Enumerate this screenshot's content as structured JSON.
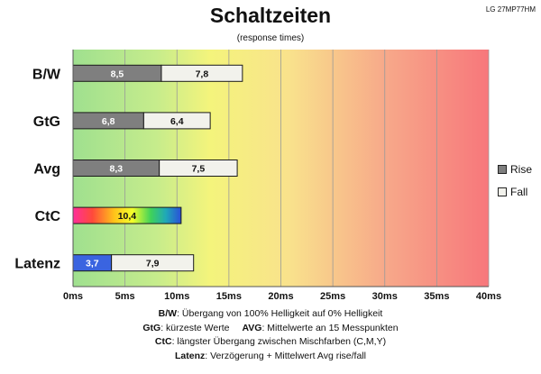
{
  "corner_label": "LG 27MP77HM",
  "chart_data": {
    "type": "bar",
    "orientation": "horizontal",
    "stacked": true,
    "title": "Schaltzeiten",
    "subtitle": "(response times)",
    "categories": [
      "B/W",
      "GtG",
      "Avg",
      "CtC",
      "Latenz"
    ],
    "series": [
      {
        "name": "Rise",
        "values": [
          8.5,
          6.8,
          8.3,
          10.4,
          3.7
        ],
        "labels": [
          "8,5",
          "6,8",
          "8,3",
          "10,4",
          "3,7"
        ],
        "color": "#7f7f7f"
      },
      {
        "name": "Fall",
        "values": [
          7.8,
          6.4,
          7.5,
          null,
          7.9
        ],
        "labels": [
          "7,8",
          "6,4",
          "7,5",
          "",
          "7,9"
        ],
        "color": "#f2f2ec"
      }
    ],
    "special_colors": {
      "CtC": "rainbow",
      "Latenz_rise": "#3a64e0"
    },
    "xlim": [
      0,
      40
    ],
    "xticks": [
      0,
      5,
      10,
      15,
      20,
      25,
      30,
      35,
      40
    ],
    "xtick_labels": [
      "0ms",
      "5ms",
      "10ms",
      "15ms",
      "20ms",
      "25ms",
      "30ms",
      "35ms",
      "40ms"
    ],
    "grid": true,
    "background": "gradient green-yellow-red",
    "legend_position": "right"
  },
  "notes": [
    {
      "parts": [
        {
          "bold": "B/W",
          "text": ":  Übergang von 100% Helligkeit auf 0% Helligkeit"
        }
      ]
    },
    {
      "parts": [
        {
          "bold": "GtG",
          "text": ": kürzeste  Werte"
        },
        {
          "bold": "AVG",
          "text": ": Mittelwerte  an 15 Messpunkten"
        }
      ]
    },
    {
      "parts": [
        {
          "bold": "CtC",
          "text": ": längster Übergang  zwischen Mischfarben (C,M,Y)"
        }
      ]
    },
    {
      "parts": [
        {
          "bold": "Latenz",
          "text": ": Verzögerung  + Mittelwert  Avg rise/fall"
        }
      ]
    }
  ]
}
